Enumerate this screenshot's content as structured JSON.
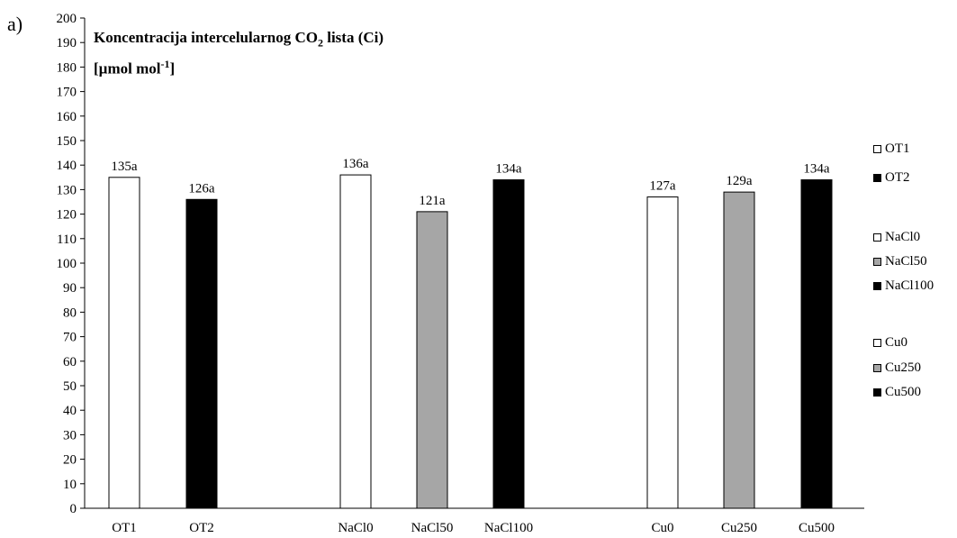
{
  "panel_label": "a)",
  "title": {
    "line1_main": "Koncentracija intercelularnog CO",
    "line1_sub": "2",
    "line1_rest": " lista (Ci)",
    "line2_main": "[µmol mol",
    "line2_sup": "-1",
    "line2_rest": "]"
  },
  "colors": {
    "white": "#ffffff",
    "gray": "#a6a6a6",
    "black": "#000000"
  },
  "chart_data": {
    "type": "bar",
    "title": "Koncentracija intercelularnog CO2 lista (Ci) [µmol mol-1]",
    "xlabel": "",
    "ylabel": "",
    "ylim": [
      0,
      200
    ],
    "yticks": [
      0,
      10,
      20,
      30,
      40,
      50,
      60,
      70,
      80,
      90,
      100,
      110,
      120,
      130,
      140,
      150,
      160,
      170,
      180,
      190,
      200
    ],
    "grid": false,
    "legend_position": "right",
    "categories": [
      "OT1",
      "OT2",
      "NaCl0",
      "NaCl50",
      "NaCl100",
      "Cu0",
      "Cu250",
      "Cu500"
    ],
    "values": [
      135,
      126,
      136,
      121,
      134,
      127,
      129,
      134
    ],
    "data_labels": [
      "135a",
      "126a",
      "136a",
      "121a",
      "134a",
      "127a",
      "129a",
      "134a"
    ],
    "fills": [
      "white",
      "black",
      "white",
      "gray",
      "black",
      "white",
      "gray",
      "black"
    ],
    "legend": [
      {
        "label": "OT1",
        "fill": "white"
      },
      {
        "label": "OT2",
        "fill": "black"
      },
      {
        "label": "NaCl0",
        "fill": "white"
      },
      {
        "label": "NaCl50",
        "fill": "gray"
      },
      {
        "label": "NaCl100",
        "fill": "black"
      },
      {
        "label": "Cu0",
        "fill": "white"
      },
      {
        "label": "Cu250",
        "fill": "gray"
      },
      {
        "label": "Cu500",
        "fill": "black"
      }
    ]
  }
}
